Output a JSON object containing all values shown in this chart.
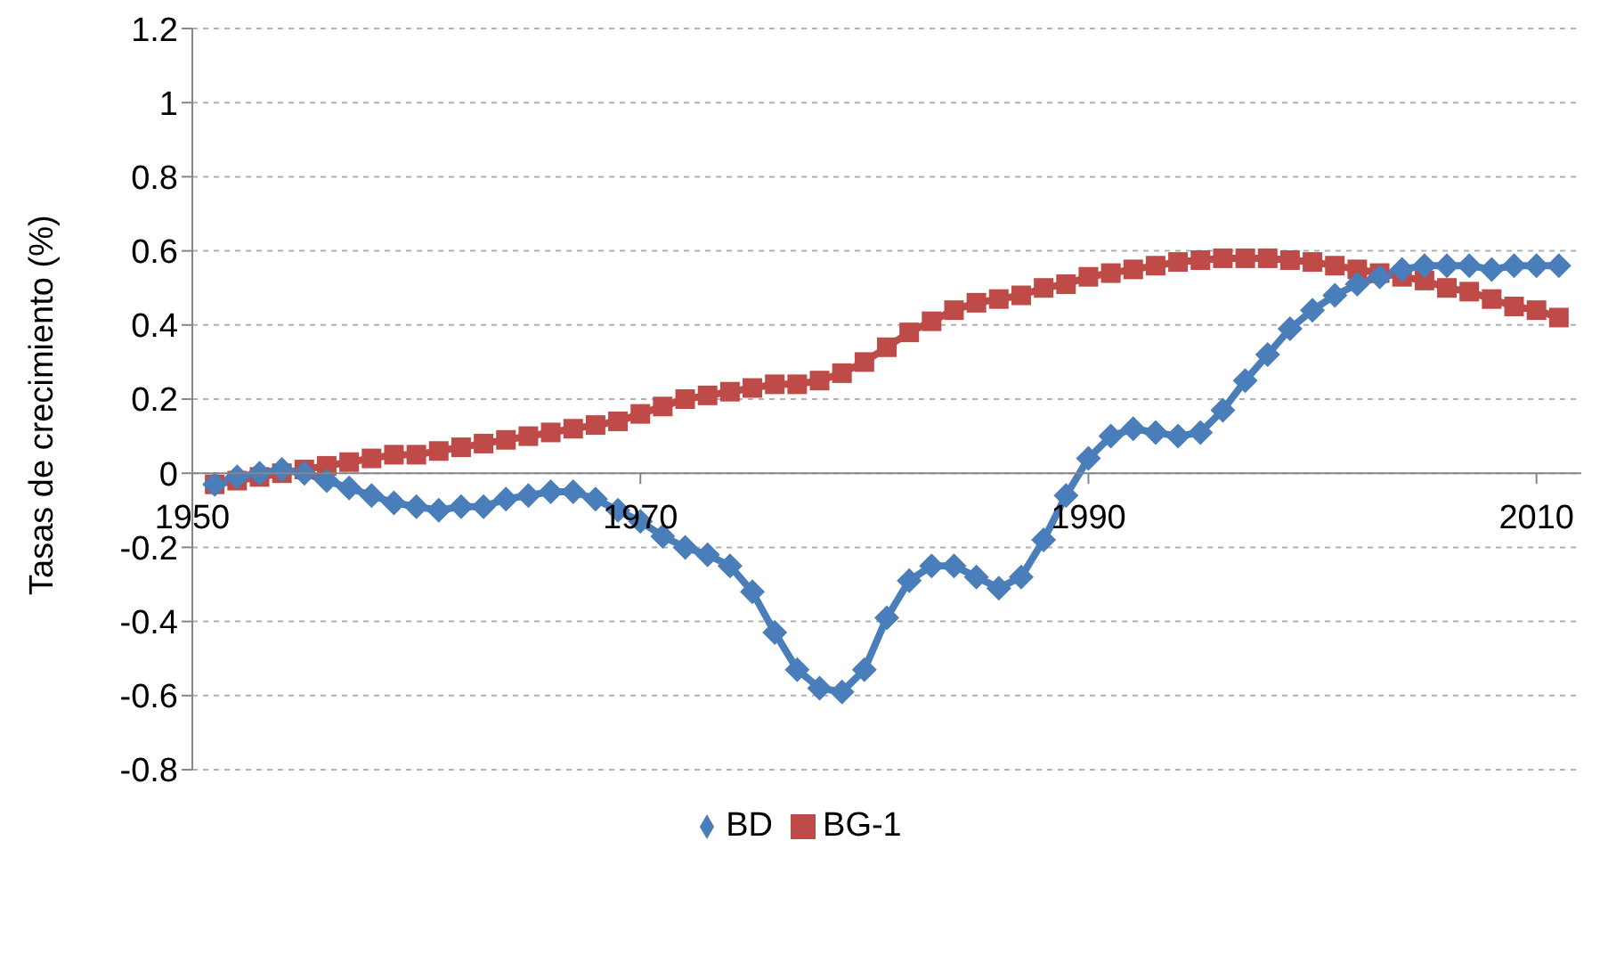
{
  "chart_data": {
    "type": "line",
    "ylabel": "Tasas de crecimiento (%)",
    "x": [
      1951,
      1952,
      1953,
      1954,
      1955,
      1956,
      1957,
      1958,
      1959,
      1960,
      1961,
      1962,
      1963,
      1964,
      1965,
      1966,
      1967,
      1968,
      1969,
      1970,
      1971,
      1972,
      1973,
      1974,
      1975,
      1976,
      1977,
      1978,
      1979,
      1980,
      1981,
      1982,
      1983,
      1984,
      1985,
      1986,
      1987,
      1988,
      1989,
      1990,
      1991,
      1992,
      1993,
      1994,
      1995,
      1996,
      1997,
      1998,
      1999,
      2000,
      2001,
      2002,
      2003,
      2004,
      2005,
      2006,
      2007,
      2008,
      2009,
      2010,
      2011
    ],
    "series": [
      {
        "name": "BD",
        "color": "#4a7ebb",
        "marker": "diamond",
        "values": [
          -0.03,
          -0.01,
          0.0,
          0.01,
          0.0,
          -0.02,
          -0.04,
          -0.06,
          -0.08,
          -0.09,
          -0.1,
          -0.09,
          -0.09,
          -0.07,
          -0.06,
          -0.05,
          -0.05,
          -0.07,
          -0.1,
          -0.13,
          -0.17,
          -0.2,
          -0.22,
          -0.25,
          -0.32,
          -0.43,
          -0.53,
          -0.58,
          -0.59,
          -0.53,
          -0.39,
          -0.29,
          -0.25,
          -0.25,
          -0.28,
          -0.31,
          -0.28,
          -0.18,
          -0.06,
          0.04,
          0.1,
          0.12,
          0.11,
          0.1,
          0.11,
          0.17,
          0.25,
          0.32,
          0.39,
          0.44,
          0.48,
          0.51,
          0.53,
          0.55,
          0.56,
          0.56,
          0.56,
          0.55,
          0.56,
          0.56,
          0.56
        ]
      },
      {
        "name": "BG-1",
        "color": "#be4b48",
        "marker": "square",
        "values": [
          -0.03,
          -0.02,
          -0.01,
          0.0,
          0.01,
          0.02,
          0.03,
          0.04,
          0.05,
          0.05,
          0.06,
          0.07,
          0.08,
          0.09,
          0.1,
          0.11,
          0.12,
          0.13,
          0.14,
          0.16,
          0.18,
          0.2,
          0.21,
          0.22,
          0.23,
          0.24,
          0.24,
          0.25,
          0.27,
          0.3,
          0.34,
          0.38,
          0.41,
          0.44,
          0.46,
          0.47,
          0.48,
          0.5,
          0.51,
          0.53,
          0.54,
          0.55,
          0.56,
          0.57,
          0.575,
          0.58,
          0.58,
          0.58,
          0.575,
          0.57,
          0.56,
          0.55,
          0.54,
          0.53,
          0.52,
          0.5,
          0.49,
          0.47,
          0.45,
          0.44,
          0.42
        ]
      }
    ],
    "xlim": [
      1950,
      2012
    ],
    "xticks": [
      1950,
      1970,
      1990,
      2010
    ],
    "ylim": [
      -0.8,
      1.2
    ],
    "yticks": [
      -0.8,
      -0.6,
      -0.4,
      -0.2,
      0,
      0.2,
      0.4,
      0.6,
      0.8,
      1,
      1.2
    ],
    "grid": "y",
    "legend": "bottom",
    "line_style": "solid"
  }
}
